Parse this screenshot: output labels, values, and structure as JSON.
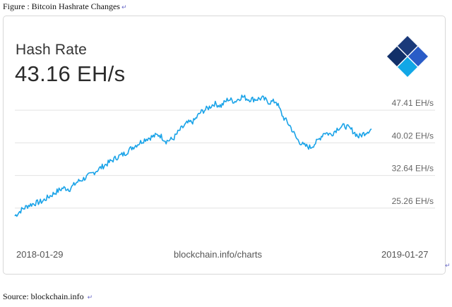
{
  "caption": {
    "text": "Figure : Bitcoin Hashrate Changes",
    "return_glyph": "↵"
  },
  "card": {
    "title": "Hash Rate",
    "value": "43.16 EH/s",
    "footer_left": "2018-01-29",
    "footer_center": "blockchain.info/charts",
    "footer_right": "2019-01-27"
  },
  "source": {
    "text": "Source: blockchain.info",
    "return_glyph": "↵"
  },
  "corner_glyph": "↵",
  "colors": {
    "line": "#1aa3e8",
    "grid": "#e2e2e2",
    "tick": "#666666"
  },
  "logo": {
    "name": "blockchain-logo-icon",
    "colors": [
      "#1b3a7a",
      "#2a5cc7",
      "#12a7e6",
      "#123069"
    ]
  },
  "chart_data": {
    "type": "line",
    "title": "Hash Rate",
    "xlabel": "",
    "ylabel": "",
    "y_unit": "EH/s",
    "x_range": [
      "2018-01-29",
      "2019-01-27"
    ],
    "ylim": [
      17.9,
      51.1
    ],
    "y_ticks": [
      25.26,
      32.64,
      40.02,
      47.41
    ],
    "y_tick_labels": [
      "25.26 EH/s",
      "32.64 EH/s",
      "40.02 EH/s",
      "47.41 EH/s"
    ],
    "grid": true,
    "series": [
      {
        "x": [
          "2018-01-29",
          "2018-02-05",
          "2018-02-12",
          "2018-02-19",
          "2018-02-26",
          "2018-03-05",
          "2018-03-12",
          "2018-03-19",
          "2018-03-26",
          "2018-04-02",
          "2018-04-09",
          "2018-04-16",
          "2018-04-23",
          "2018-04-30",
          "2018-05-07",
          "2018-05-14",
          "2018-05-21",
          "2018-05-28",
          "2018-06-04",
          "2018-06-11",
          "2018-06-18",
          "2018-06-25",
          "2018-07-02",
          "2018-07-09",
          "2018-07-16",
          "2018-07-23",
          "2018-07-30",
          "2018-08-06",
          "2018-08-13",
          "2018-08-20",
          "2018-08-27",
          "2018-09-03",
          "2018-09-10",
          "2018-09-17",
          "2018-09-24",
          "2018-10-01",
          "2018-10-08",
          "2018-10-15",
          "2018-10-22",
          "2018-10-29",
          "2018-11-05",
          "2018-11-12",
          "2018-11-19",
          "2018-11-26",
          "2018-12-03",
          "2018-12-10",
          "2018-12-17",
          "2018-12-24",
          "2018-12-31",
          "2019-01-07",
          "2019-01-14",
          "2019-01-21",
          "2019-01-27"
        ],
        "values": [
          23.5,
          24.9,
          25.9,
          26.4,
          26.8,
          27.9,
          28.9,
          29.8,
          29.6,
          31.1,
          31.9,
          32.8,
          33.9,
          34.9,
          35.9,
          36.9,
          37.6,
          38.9,
          39.9,
          40.9,
          41.4,
          41.9,
          40.4,
          40.9,
          42.9,
          44.4,
          44.9,
          46.9,
          47.8,
          48.9,
          48.4,
          49.9,
          49.4,
          50.5,
          49.9,
          49.9,
          50.1,
          49.2,
          49.4,
          45.9,
          43.9,
          40.9,
          39.4,
          39.0,
          40.4,
          42.4,
          41.9,
          43.4,
          43.9,
          42.9,
          41.4,
          42.4,
          43.16
        ]
      }
    ]
  }
}
